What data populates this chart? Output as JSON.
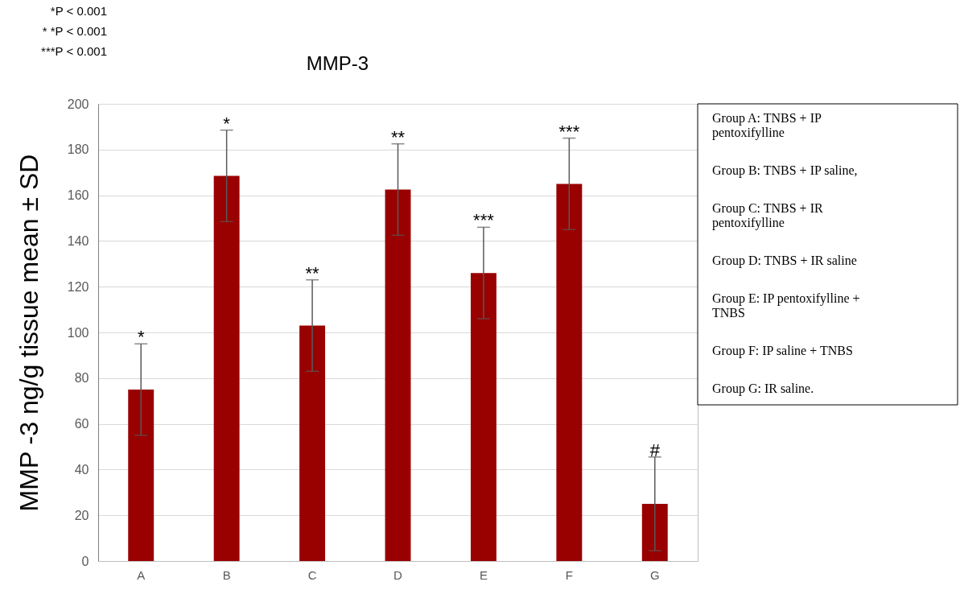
{
  "chart_data": {
    "type": "bar",
    "title": "MMP-3",
    "ylabel": "MMP -3 ng/g tissue mean ± SD",
    "categories": [
      "A",
      "B",
      "C",
      "D",
      "E",
      "F",
      "G"
    ],
    "values": [
      75,
      168.5,
      103,
      162.5,
      126,
      165,
      25
    ],
    "errors": [
      20,
      20,
      20,
      20,
      20,
      20,
      20.5
    ],
    "color": "#990000",
    "ylim": [
      0,
      200
    ],
    "yticks": [
      0,
      20,
      40,
      60,
      80,
      100,
      120,
      140,
      160,
      180,
      200
    ],
    "grid": "y",
    "annotations": [
      {
        "text": "*",
        "x": "A",
        "y": 95
      },
      {
        "text": "*",
        "x": "B",
        "y": 188.5
      },
      {
        "text": "**",
        "x": "C",
        "y": 123
      },
      {
        "text": "**",
        "x": "D",
        "y": 182.5
      },
      {
        "text": "***",
        "x": "E",
        "y": 146
      },
      {
        "text": "***",
        "x": "F",
        "y": 185
      },
      {
        "text": "#",
        "x": "G",
        "y": 45.5
      },
      "*P < 0.001",
      "* *P < 0.001",
      "***P < 0.001",
      "Group A: TNBS + IP pentoxifylline",
      "Group B: TNBS + IP saline,",
      "Group C: TNBS + IR pentoxifylline",
      "Group D: TNBS + IR saline",
      "Group E: IP pentoxifylline + TNBS",
      "Group F: IP saline + TNBS",
      "Group G: IR saline."
    ]
  }
}
